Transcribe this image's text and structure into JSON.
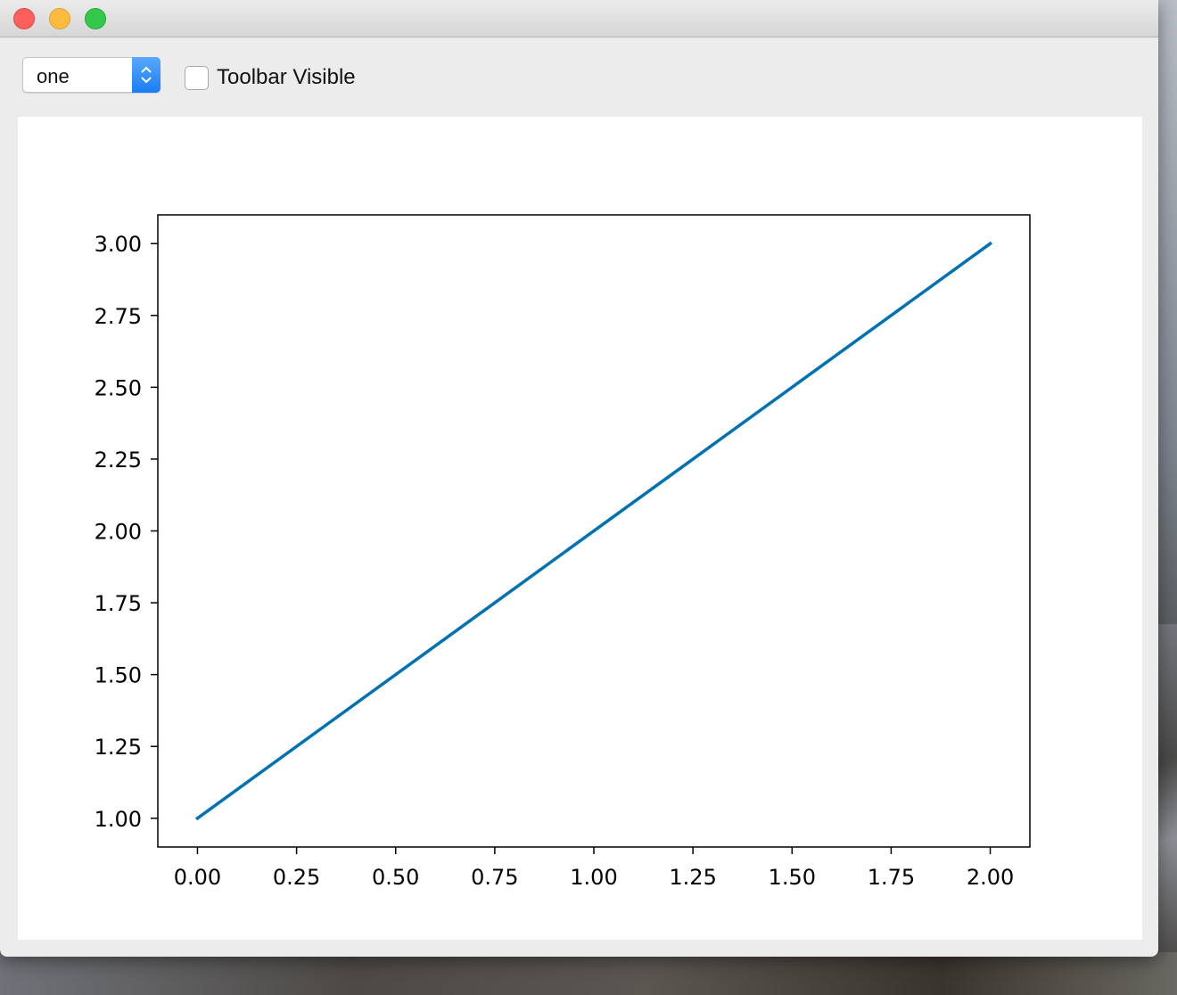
{
  "window": {
    "buttons": [
      "close",
      "minimize",
      "zoom"
    ]
  },
  "toolbar": {
    "combo_value": "one",
    "checkbox_label": "Toolbar Visible",
    "checkbox_checked": false
  },
  "chart_data": {
    "type": "line",
    "series": [
      {
        "x": [
          0.0,
          2.0
        ],
        "y": [
          1.0,
          3.0
        ],
        "color": "#0072b2"
      }
    ],
    "xticks": [
      "0.00",
      "0.25",
      "0.50",
      "0.75",
      "1.00",
      "1.25",
      "1.50",
      "1.75",
      "2.00"
    ],
    "yticks": [
      "1.00",
      "1.25",
      "1.50",
      "1.75",
      "2.00",
      "2.25",
      "2.50",
      "2.75",
      "3.00"
    ],
    "xlim": [
      -0.1,
      2.1
    ],
    "ylim": [
      0.9,
      3.1
    ],
    "grid": false
  }
}
